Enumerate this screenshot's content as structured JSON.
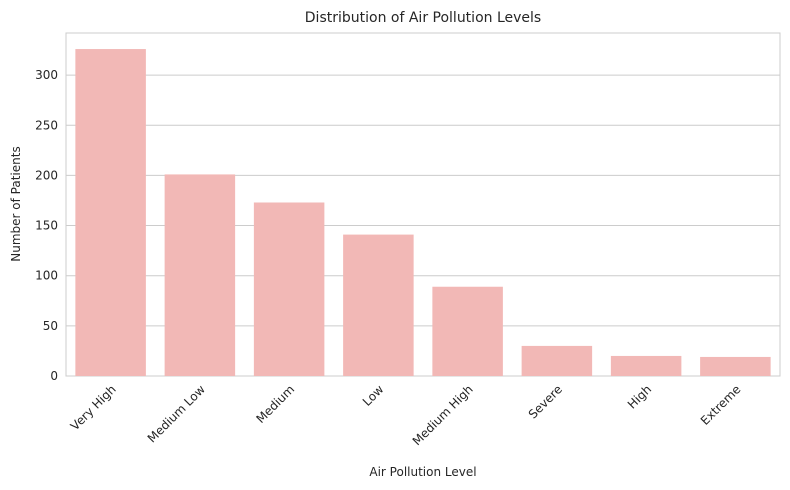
{
  "chart_data": {
    "type": "bar",
    "title": "Distribution of Air Pollution Levels",
    "xlabel": "Air Pollution Level",
    "ylabel": "Number of Patients",
    "categories": [
      "Very High",
      "Medium Low",
      "Medium",
      "Low",
      "Medium High",
      "Severe",
      "High",
      "Extreme"
    ],
    "values": [
      326,
      201,
      173,
      141,
      89,
      30,
      20,
      19
    ],
    "ylim": [
      0,
      342
    ],
    "yticks": [
      0,
      50,
      100,
      150,
      200,
      250,
      300
    ],
    "grid": true,
    "bar_color": "#f2b8b6",
    "grid_color": "#cccccc"
  }
}
